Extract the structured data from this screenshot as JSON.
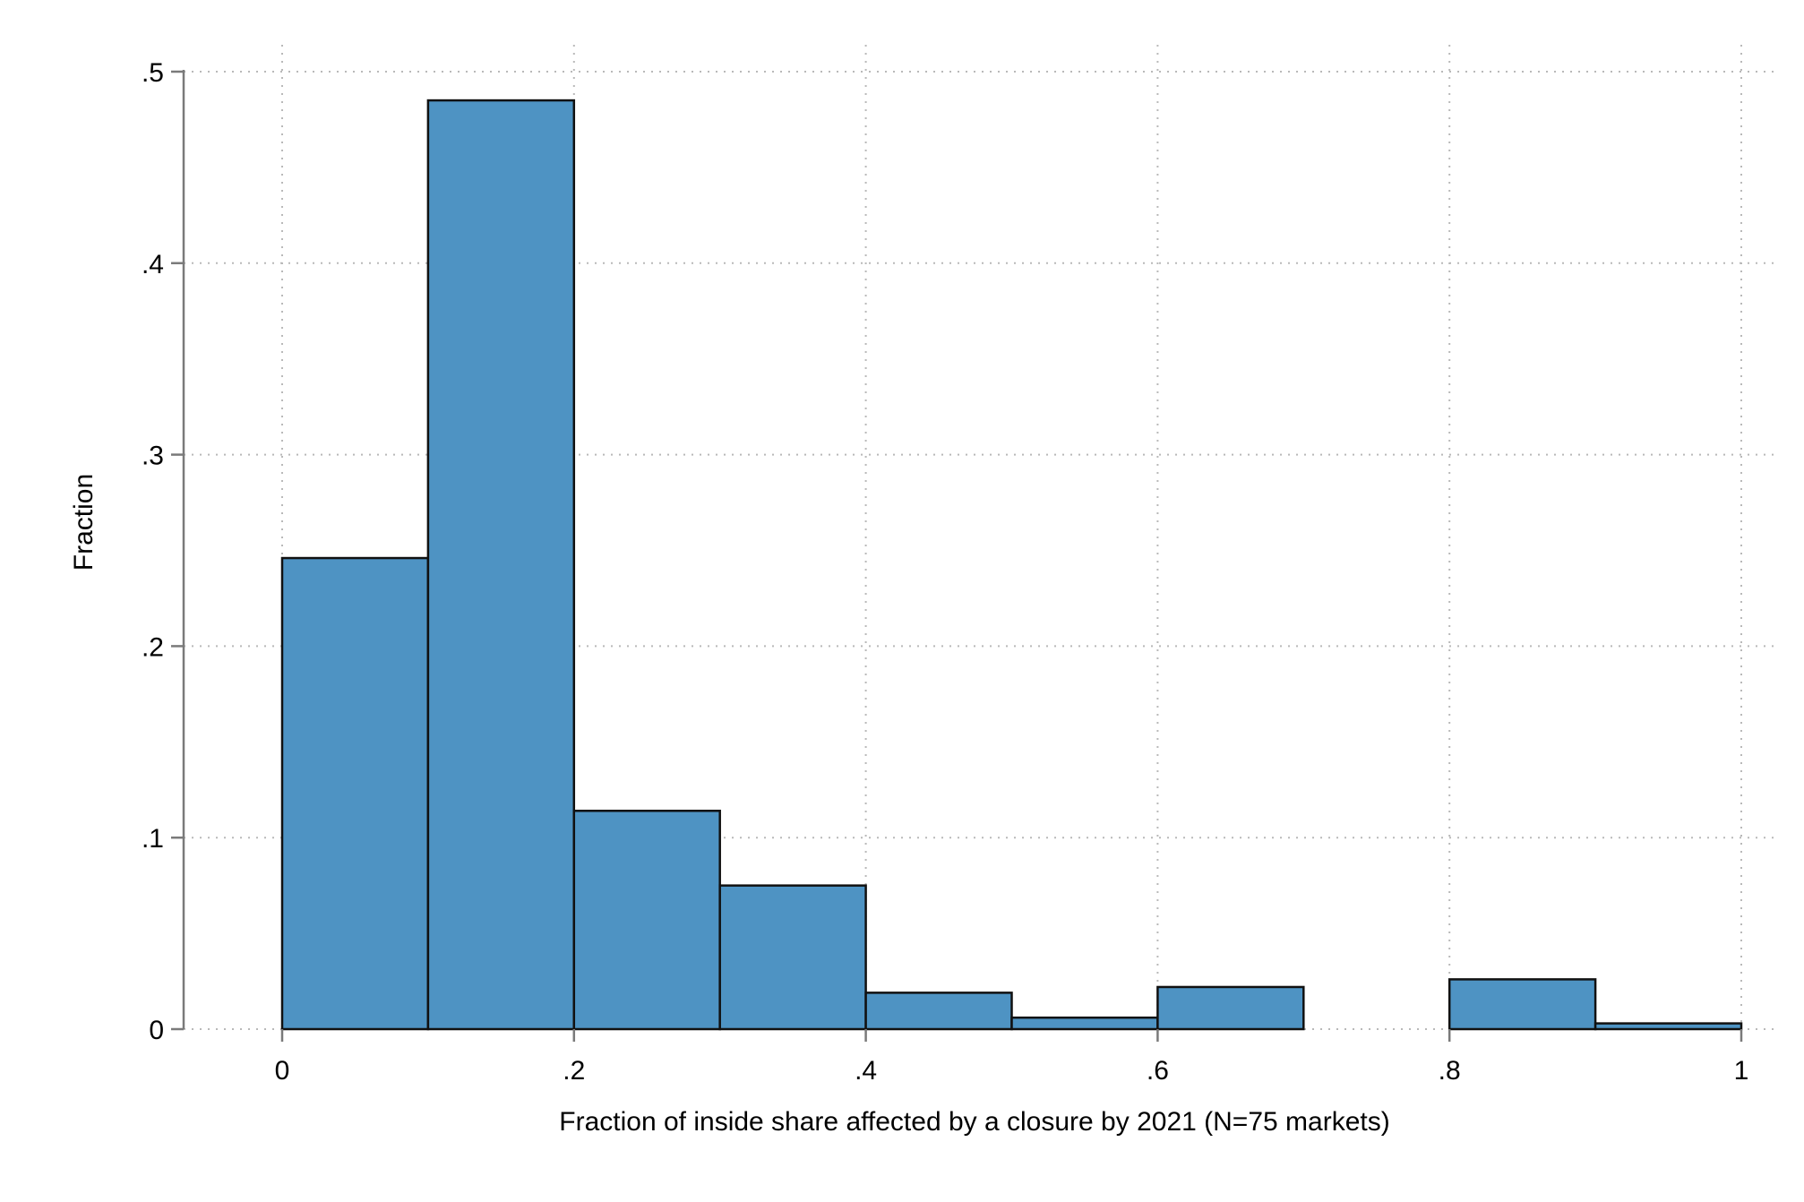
{
  "chart_data": {
    "type": "bar",
    "subtype": "histogram",
    "bins": [
      {
        "start": 0.0,
        "end": 0.1,
        "value": 0.246
      },
      {
        "start": 0.1,
        "end": 0.2,
        "value": 0.485
      },
      {
        "start": 0.2,
        "end": 0.3,
        "value": 0.114
      },
      {
        "start": 0.3,
        "end": 0.4,
        "value": 0.075
      },
      {
        "start": 0.4,
        "end": 0.5,
        "value": 0.019
      },
      {
        "start": 0.5,
        "end": 0.6,
        "value": 0.006
      },
      {
        "start": 0.6,
        "end": 0.7,
        "value": 0.022
      },
      {
        "start": 0.7,
        "end": 0.8,
        "value": 0.0
      },
      {
        "start": 0.8,
        "end": 0.9,
        "value": 0.026
      },
      {
        "start": 0.9,
        "end": 1.0,
        "value": 0.003
      }
    ],
    "xlabel": "Fraction of inside share affected by a closure by 2021 (N=75 markets)",
    "ylabel": "Fraction",
    "xlim": [
      -0.07,
      1.02
    ],
    "ylim": [
      0,
      0.5
    ],
    "xticks": [
      0,
      0.2,
      0.4,
      0.6,
      0.8,
      1
    ],
    "xtick_labels": [
      "0",
      ".2",
      ".4",
      ".6",
      ".8",
      "1"
    ],
    "yticks": [
      0,
      0.1,
      0.2,
      0.3,
      0.4,
      0.5
    ],
    "ytick_labels": [
      "0",
      ".1",
      ".2",
      ".3",
      ".4",
      ".5"
    ],
    "grid": true,
    "bar_color": "#4e93c3",
    "bar_edge_color": "#111111"
  }
}
